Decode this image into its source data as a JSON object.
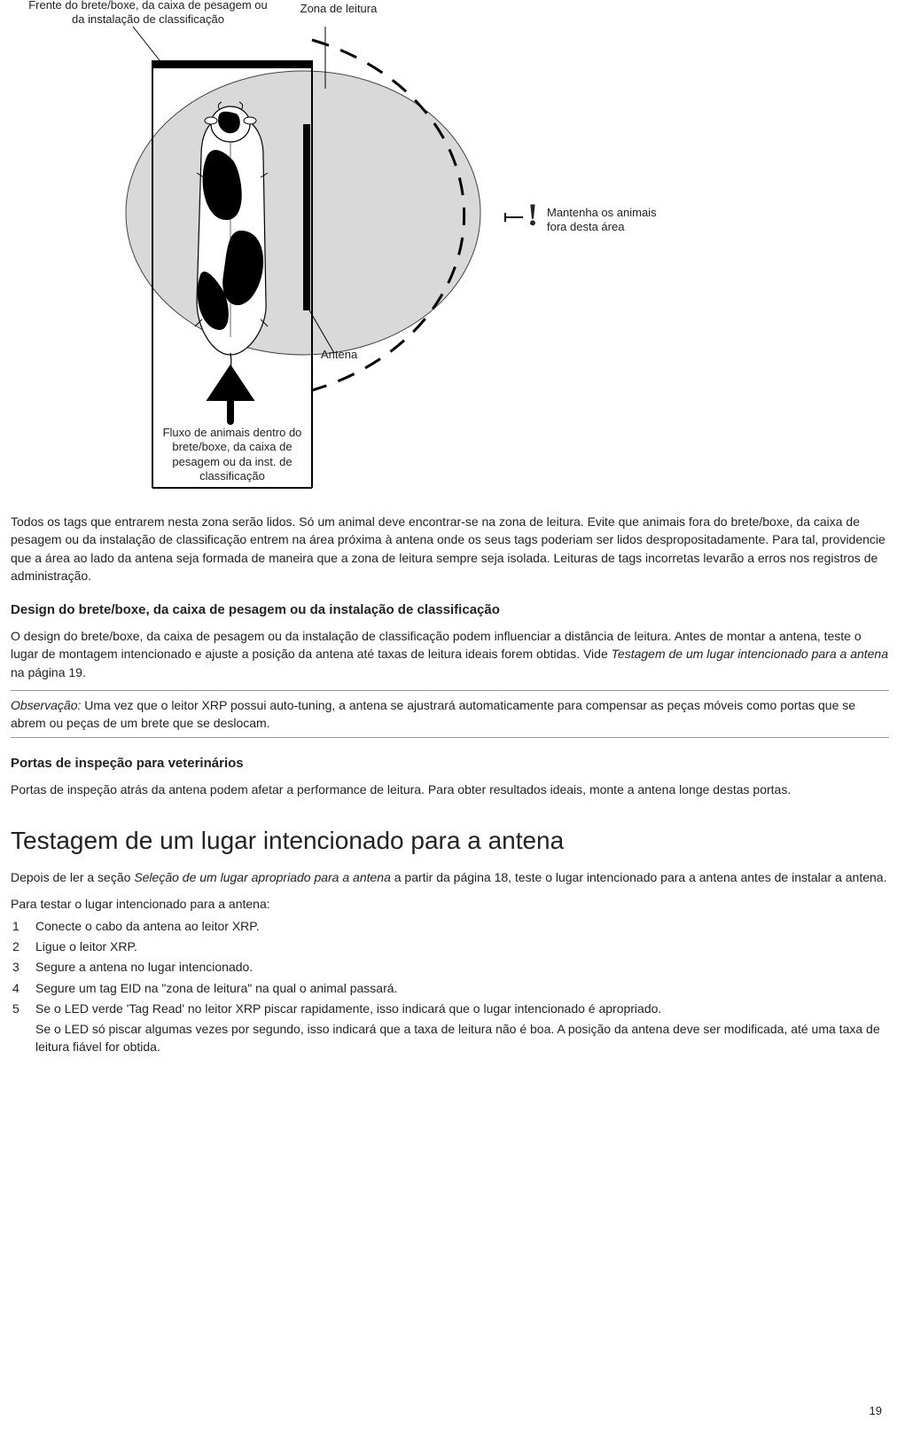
{
  "diagram": {
    "label_front": "Frente do brete/boxe, da caixa de pesagem ou\nda instalação de classificação",
    "label_zone": "Zona de leitura",
    "label_keepout": "Mantenha os animais\nfora desta área",
    "label_antenna": "Antena",
    "label_flow": "Fluxo de animais dentro do\nbrete/boxe, da caixa de\npesagem ou da inst. de\nclassificação",
    "exclaim": "!",
    "colors": {
      "fill_zone": "#d9d9d9",
      "stroke": "#000000",
      "cow_black": "#000000",
      "cow_white": "#ffffff"
    }
  },
  "p_zone": "Todos os tags que entrarem nesta zona serão lidos. Só um animal deve encontrar-se na zona de leitura. Evite que animais fora do brete/boxe, da caixa de pesagem ou da instalação de classificação entrem na área próxima à antena onde os seus tags poderiam ser lidos despropositadamente. Para tal, providencie que a área ao lado da antena seja formada de maneira que a zona de leitura sempre seja isolada. Leituras de tags incorretas levarão a erros nos registros de administração.",
  "h_design": "Design do brete/boxe, da caixa de pesagem ou da instalação de classificação",
  "p_design_1": "O design do brete/boxe, da caixa de pesagem ou da instalação de classificação podem influenciar a distância de leitura. Antes de montar a antena, teste o lugar de montagem intencionado e ajuste a posição da antena até taxas de leitura ideais forem obtidas. Vide ",
  "p_design_ref": "Testagem de um lugar intencionado para a antena",
  "p_design_2": " na página 19.",
  "note_prefix": "Observação:",
  "note_body": " Uma vez que o leitor XRP possui auto-tuning, a antena se ajustrará automaticamente para compensar as peças móveis como portas que se abrem ou peças de um brete que se deslocam.",
  "h_vet": "Portas de inspeção para veterinários",
  "p_vet": "Portas de inspeção atrás da antena podem afetar a performance de leitura. Para obter resultados ideais, monte a antena longe destas portas.",
  "h_test": "Testagem de um lugar intencionado para a antena",
  "p_test_intro_1": "Depois de ler a seção ",
  "p_test_intro_ref": "Seleção de um lugar apropriado para a antena",
  "p_test_intro_2": " a partir da página 18, teste o lugar intencionado para a antena antes de instalar a antena.",
  "p_test_lead": "Para testar o lugar intencionado para a antena:",
  "steps": [
    "Conecte o cabo da antena ao leitor XRP.",
    "Ligue o leitor XRP.",
    "Segure a antena no lugar intencionado.",
    "Segure um tag EID na \"zona de leitura\" na qual o animal passará.",
    "Se o LED verde 'Tag Read' no leitor XRP piscar rapidamente, isso indicará que o lugar intencionado é apropriado."
  ],
  "step5_cont": "Se o LED só piscar algumas vezes por segundo, isso indicará que a taxa de leitura não é boa. A posição da antena deve ser modificada, até uma taxa de leitura fiável for obtida.",
  "page_number": "19"
}
